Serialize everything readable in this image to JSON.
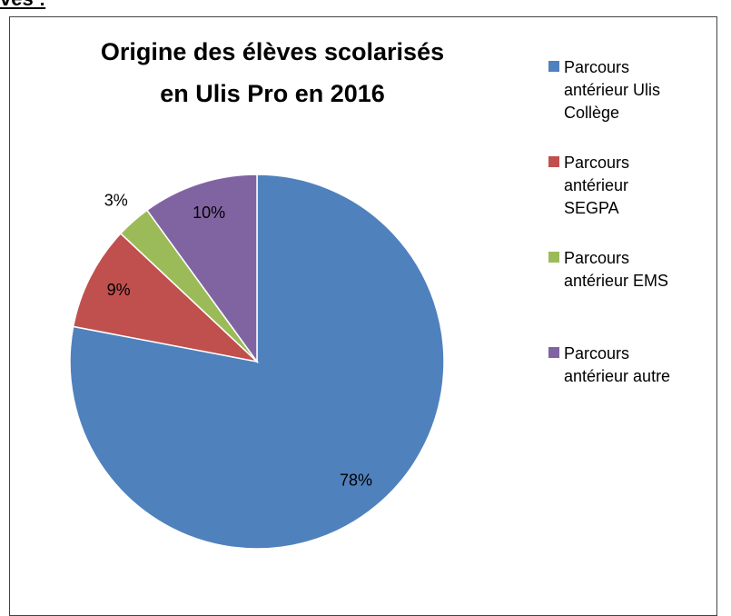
{
  "heading": "ves :",
  "chart_data": {
    "type": "pie",
    "title": "Origine des élèves scolarisés\nen Ulis Pro en 2016",
    "categories": [
      "Parcours antérieur Ulis Collège",
      "Parcours antérieur SEGPA",
      "Parcours antérieur EMS",
      "Parcours antérieur autre"
    ],
    "values": [
      78,
      9,
      3,
      10
    ],
    "value_labels": [
      "78%",
      "9%",
      "3%",
      "10%"
    ],
    "colors": [
      "#4f81bd",
      "#c0504d",
      "#9bbb59",
      "#8064a2"
    ],
    "legend": "right"
  }
}
